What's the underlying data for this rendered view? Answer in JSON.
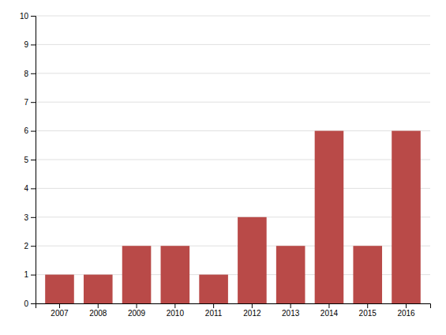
{
  "chart_data": {
    "type": "bar",
    "categories": [
      "2007",
      "2008",
      "2009",
      "2010",
      "2011",
      "2012",
      "2013",
      "2014",
      "2015",
      "2016"
    ],
    "values": [
      1,
      1,
      2,
      2,
      1,
      3,
      2,
      6,
      2,
      6
    ],
    "color": "#b94a48",
    "ylim": [
      0,
      10
    ],
    "yticks": [
      0,
      1,
      2,
      3,
      4,
      5,
      6,
      7,
      8,
      9,
      10
    ],
    "grid": true
  }
}
